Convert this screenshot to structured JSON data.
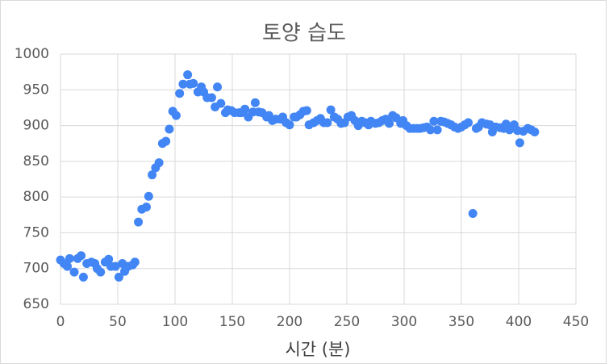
{
  "chart_data": {
    "type": "scatter",
    "title": "토양 습도",
    "x_label": "시간 (분)",
    "color": "#4285f4",
    "grid": true,
    "xlim": [
      0,
      450
    ],
    "xticks": [
      0,
      50,
      100,
      150,
      200,
      250,
      300,
      350,
      400,
      450
    ],
    "ylim": [
      650,
      1000
    ],
    "yticks": [
      650,
      700,
      750,
      800,
      850,
      900,
      950,
      1000
    ],
    "x": [
      0,
      3,
      6,
      8,
      12,
      15,
      18,
      20,
      23,
      27,
      30,
      32,
      35,
      39,
      42,
      44,
      48,
      51,
      54,
      56,
      59,
      63,
      65,
      68,
      71,
      75,
      77,
      80,
      83,
      86,
      89,
      92,
      95,
      98,
      101,
      104,
      107,
      111,
      113,
      116,
      120,
      123,
      125,
      128,
      132,
      135,
      137,
      140,
      144,
      146,
      149,
      152,
      156,
      158,
      161,
      164,
      168,
      170,
      173,
      176,
      180,
      182,
      185,
      188,
      192,
      194,
      197,
      200,
      204,
      206,
      209,
      212,
      215,
      217,
      221,
      224,
      227,
      230,
      233,
      236,
      239,
      242,
      245,
      248,
      251,
      254,
      257,
      260,
      263,
      266,
      269,
      271,
      275,
      278,
      281,
      284,
      287,
      290,
      293,
      297,
      299,
      302,
      305,
      308,
      311,
      314,
      317,
      320,
      323,
      326,
      329,
      332,
      335,
      338,
      341,
      344,
      347,
      350,
      353,
      356,
      360,
      363,
      365,
      368,
      372,
      375,
      377,
      380,
      384,
      387,
      389,
      392,
      396,
      399,
      401,
      404,
      408,
      411,
      414
    ],
    "values": [
      712,
      707,
      703,
      714,
      695,
      714,
      718,
      688,
      707,
      709,
      707,
      700,
      695,
      709,
      713,
      703,
      703,
      688,
      707,
      696,
      703,
      705,
      709,
      765,
      783,
      786,
      801,
      831,
      841,
      848,
      875,
      878,
      895,
      920,
      914,
      945,
      958,
      971,
      958,
      959,
      947,
      954,
      947,
      939,
      939,
      926,
      954,
      931,
      918,
      922,
      921,
      918,
      918,
      918,
      923,
      912,
      919,
      932,
      919,
      918,
      912,
      914,
      907,
      909,
      909,
      912,
      904,
      901,
      912,
      912,
      915,
      920,
      921,
      901,
      904,
      907,
      910,
      904,
      904,
      922,
      912,
      909,
      903,
      904,
      912,
      914,
      907,
      900,
      906,
      904,
      901,
      906,
      903,
      904,
      907,
      909,
      903,
      914,
      911,
      903,
      907,
      900,
      896,
      896,
      896,
      896,
      897,
      898,
      894,
      906,
      894,
      906,
      905,
      903,
      901,
      898,
      896,
      898,
      901,
      904,
      777,
      896,
      898,
      904,
      902,
      901,
      891,
      898,
      897,
      896,
      902,
      894,
      901,
      893,
      876,
      892,
      896,
      894,
      891
    ]
  }
}
